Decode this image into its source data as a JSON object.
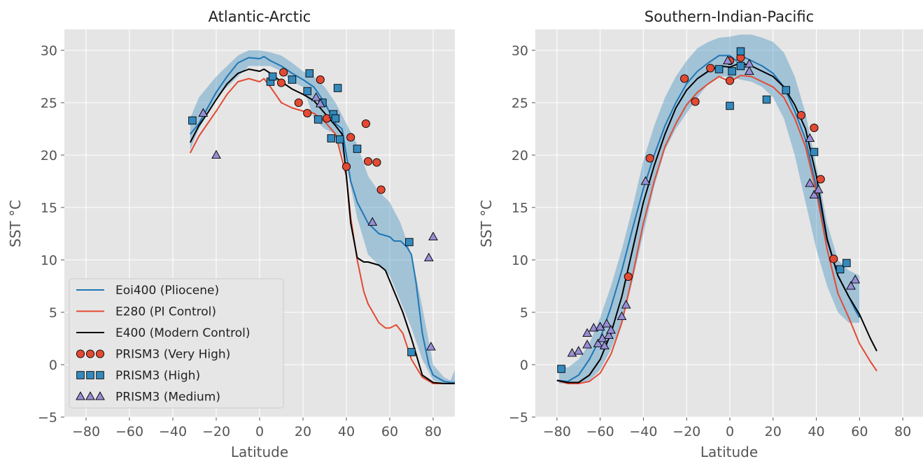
{
  "chart_data": [
    {
      "type": "line",
      "title": "Atlantic-Arctic",
      "xlabel": "Latitude",
      "ylabel": "SST °C",
      "xlim": [
        -90,
        90
      ],
      "ylim": [
        -5,
        32
      ],
      "xticks": [
        "−80",
        "−60",
        "−40",
        "−20",
        "0",
        "20",
        "40",
        "60",
        "80"
      ],
      "yticks": [
        "−5",
        "0",
        "5",
        "10",
        "15",
        "20",
        "25",
        "30"
      ],
      "grid": true,
      "legend": "lower-left",
      "band": {
        "x": [
          -32,
          -28,
          -24,
          -20,
          -15,
          -10,
          -5,
          0,
          5,
          10,
          15,
          20,
          25,
          30,
          35,
          40,
          45,
          50,
          55,
          60,
          65,
          70,
          75,
          80,
          85,
          88,
          90
        ],
        "upper": [
          23.5,
          25.5,
          26.5,
          27.5,
          28.5,
          29.5,
          30.0,
          30.0,
          29.8,
          29.5,
          28.8,
          28.0,
          27.5,
          26.5,
          25.0,
          23.0,
          21.0,
          18.0,
          16.5,
          15.5,
          13.5,
          10.5,
          5.5,
          0.0,
          -1.2,
          -1.5,
          -0.5
        ],
        "lower": [
          20.5,
          22.5,
          24.0,
          25.5,
          26.5,
          27.5,
          28.5,
          28.5,
          28.5,
          28.0,
          27.0,
          26.5,
          23.5,
          22.5,
          22.0,
          19.0,
          14.0,
          10.5,
          9.5,
          8.5,
          6.0,
          3.5,
          0.5,
          -1.5,
          -1.8,
          -1.8,
          -1.8
        ]
      },
      "series": [
        {
          "name": "Eoi400 (Pliocene)",
          "color": "#1f77b4",
          "x": [
            -32,
            -28,
            -24,
            -20,
            -15,
            -10,
            -5,
            0,
            2,
            5,
            10,
            15,
            20,
            25,
            30,
            35,
            38,
            40,
            42,
            45,
            50,
            55,
            60,
            62,
            65,
            68,
            70,
            72,
            75,
            78,
            80,
            85,
            88,
            90
          ],
          "y": [
            22.0,
            23.0,
            24.5,
            26.0,
            27.5,
            28.8,
            29.3,
            29.2,
            29.4,
            29.0,
            28.5,
            27.8,
            27.2,
            26.5,
            25.0,
            23.0,
            22.5,
            20.0,
            17.5,
            15.5,
            13.5,
            12.5,
            12.2,
            11.8,
            11.8,
            11.2,
            10.5,
            8.0,
            3.0,
            0.0,
            -1.0,
            -1.6,
            -1.7,
            -1.7
          ]
        },
        {
          "name": "E280 (PI Control)",
          "color": "#e24a33",
          "x": [
            -32,
            -28,
            -24,
            -20,
            -15,
            -10,
            -5,
            0,
            2,
            5,
            10,
            15,
            20,
            25,
            30,
            35,
            40,
            42,
            45,
            48,
            50,
            55,
            58,
            60,
            63,
            66,
            70,
            75,
            80,
            85,
            90
          ],
          "y": [
            20.2,
            21.8,
            23.0,
            24.2,
            25.8,
            27.0,
            27.3,
            27.0,
            27.3,
            26.5,
            25.0,
            24.5,
            24.2,
            24.0,
            23.2,
            22.0,
            18.0,
            14.0,
            10.0,
            7.0,
            5.8,
            4.0,
            3.5,
            3.5,
            3.8,
            3.0,
            0.5,
            -1.2,
            -1.8,
            -1.8,
            -1.8
          ]
        },
        {
          "name": "E400 (Modern Control)",
          "color": "#000000",
          "x": [
            -32,
            -28,
            -24,
            -20,
            -15,
            -10,
            -5,
            0,
            2,
            5,
            10,
            15,
            20,
            25,
            30,
            35,
            38,
            40,
            42,
            45,
            48,
            50,
            55,
            58,
            60,
            63,
            66,
            70,
            75,
            80,
            85,
            90
          ],
          "y": [
            21.2,
            22.8,
            24.0,
            25.3,
            26.8,
            27.8,
            28.2,
            28.0,
            28.2,
            27.8,
            27.0,
            26.3,
            25.8,
            25.2,
            24.0,
            22.8,
            22.0,
            18.0,
            13.5,
            10.2,
            9.8,
            9.8,
            9.5,
            9.0,
            8.0,
            6.5,
            5.0,
            2.5,
            -1.0,
            -1.7,
            -1.8,
            -1.8
          ]
        }
      ],
      "markers": [
        {
          "name": "PRISM3 (Very High)",
          "shape": "circle",
          "color": "#e24a33",
          "points": [
            [
              11,
              27.9
            ],
            [
              10,
              26.9
            ],
            [
              18,
              25.0
            ],
            [
              22,
              24.0
            ],
            [
              28,
              27.2
            ],
            [
              31,
              23.5
            ],
            [
              40,
              18.9
            ],
            [
              42,
              21.7
            ],
            [
              49,
              23.0
            ],
            [
              50,
              19.4
            ],
            [
              54,
              19.3
            ],
            [
              56,
              16.7
            ]
          ]
        },
        {
          "name": "PRISM3 (High)",
          "shape": "square",
          "color": "#348abd",
          "points": [
            [
              -31,
              23.3
            ],
            [
              5,
              27.0
            ],
            [
              6,
              27.5
            ],
            [
              15,
              27.2
            ],
            [
              22,
              26.1
            ],
            [
              23,
              27.8
            ],
            [
              27,
              23.4
            ],
            [
              29,
              25.0
            ],
            [
              33,
              21.6
            ],
            [
              34,
              23.9
            ],
            [
              35,
              23.5
            ],
            [
              36,
              26.4
            ],
            [
              37,
              21.5
            ],
            [
              45,
              20.6
            ],
            [
              69,
              11.7
            ],
            [
              70,
              1.2
            ]
          ]
        },
        {
          "name": "PRISM3 (Medium)",
          "shape": "triangle",
          "color": "#988ed5",
          "points": [
            [
              -26,
              24.0
            ],
            [
              -20,
              20.0
            ],
            [
              26,
              25.5
            ],
            [
              28,
              24.9
            ],
            [
              52,
              13.6
            ],
            [
              78,
              10.2
            ],
            [
              80,
              12.2
            ],
            [
              79,
              1.7
            ]
          ]
        }
      ]
    },
    {
      "type": "line",
      "title": "Southern-Indian-Pacific",
      "xlabel": "Latitude",
      "ylabel": "SST °C",
      "xlim": [
        -90,
        90
      ],
      "ylim": [
        -5,
        32
      ],
      "xticks": [
        "−80",
        "−60",
        "−40",
        "−20",
        "0",
        "20",
        "40",
        "60",
        "80"
      ],
      "yticks": [
        "−5",
        "0",
        "5",
        "10",
        "15",
        "20",
        "25",
        "30"
      ],
      "grid": true,
      "band": {
        "x": [
          -79,
          -75,
          -70,
          -65,
          -60,
          -55,
          -50,
          -45,
          -40,
          -35,
          -30,
          -25,
          -20,
          -15,
          -10,
          -5,
          0,
          5,
          10,
          15,
          20,
          25,
          30,
          35,
          40,
          45,
          50,
          55,
          60
        ],
        "upper": [
          0.0,
          -0.3,
          0.5,
          2.0,
          4.5,
          7.5,
          11.0,
          15.0,
          19.5,
          22.8,
          25.5,
          27.5,
          29.0,
          30.2,
          30.8,
          31.2,
          31.3,
          31.5,
          31.5,
          31.2,
          30.8,
          29.8,
          27.5,
          24.0,
          19.0,
          13.5,
          10.0,
          9.0,
          8.5
        ],
        "lower": [
          -1.8,
          -1.8,
          -1.8,
          -1.5,
          -0.5,
          1.5,
          4.0,
          8.0,
          12.5,
          17.0,
          20.5,
          22.5,
          24.0,
          25.5,
          26.8,
          27.5,
          27.5,
          27.2,
          27.0,
          26.5,
          25.5,
          23.5,
          20.0,
          15.5,
          11.0,
          7.5,
          5.0,
          4.0,
          4.0
        ]
      },
      "series": [
        {
          "name": "Eoi400 (Pliocene)",
          "color": "#1f77b4",
          "x": [
            -80,
            -75,
            -70,
            -65,
            -60,
            -55,
            -50,
            -45,
            -40,
            -35,
            -30,
            -25,
            -20,
            -15,
            -10,
            -5,
            0,
            3,
            5,
            10,
            15,
            20,
            25,
            30,
            35,
            40,
            45,
            50,
            55,
            58,
            60
          ],
          "y": [
            -1.5,
            -1.6,
            -1.0,
            0.5,
            2.5,
            5.5,
            9.0,
            13.0,
            16.8,
            20.0,
            22.8,
            25.0,
            26.8,
            28.0,
            28.8,
            29.5,
            29.5,
            29.0,
            29.5,
            29.0,
            28.5,
            27.8,
            26.5,
            24.2,
            21.5,
            17.0,
            11.8,
            8.5,
            6.5,
            5.2,
            4.5
          ]
        },
        {
          "name": "E280 (PI Control)",
          "color": "#e24a33",
          "x": [
            -80,
            -75,
            -70,
            -65,
            -60,
            -55,
            -50,
            -45,
            -40,
            -35,
            -30,
            -25,
            -20,
            -15,
            -10,
            -5,
            0,
            5,
            10,
            15,
            20,
            25,
            30,
            35,
            40,
            45,
            50,
            55,
            60,
            65,
            68
          ],
          "y": [
            -1.5,
            -1.8,
            -1.8,
            -1.6,
            -0.8,
            1.0,
            4.0,
            8.5,
            13.5,
            17.5,
            20.8,
            23.0,
            24.8,
            26.0,
            26.8,
            27.5,
            27.0,
            27.6,
            27.5,
            27.0,
            26.5,
            25.5,
            23.5,
            20.8,
            16.5,
            11.0,
            6.8,
            4.5,
            2.0,
            0.3,
            -0.6
          ]
        },
        {
          "name": "E400 (Modern Control)",
          "color": "#000000",
          "x": [
            -80,
            -75,
            -70,
            -65,
            -60,
            -55,
            -50,
            -45,
            -40,
            -35,
            -30,
            -25,
            -20,
            -15,
            -10,
            -5,
            0,
            5,
            10,
            15,
            20,
            25,
            30,
            35,
            40,
            45,
            50,
            55,
            60,
            65,
            68
          ],
          "y": [
            -1.5,
            -1.7,
            -1.7,
            -1.0,
            0.5,
            3.0,
            6.5,
            11.0,
            15.5,
            19.0,
            22.0,
            24.5,
            26.2,
            27.3,
            28.0,
            28.5,
            28.4,
            28.8,
            28.5,
            28.0,
            27.5,
            26.5,
            24.8,
            22.5,
            18.0,
            12.0,
            8.5,
            6.5,
            4.8,
            2.5,
            1.3
          ]
        }
      ],
      "markers": [
        {
          "name": "PRISM3 (Very High)",
          "shape": "circle",
          "color": "#e24a33",
          "points": [
            [
              -47,
              8.4
            ],
            [
              -37,
              19.7
            ],
            [
              -21,
              27.3
            ],
            [
              -16,
              25.1
            ],
            [
              -9,
              28.3
            ],
            [
              0,
              29.0
            ],
            [
              0,
              27.1
            ],
            [
              5,
              29.3
            ],
            [
              33,
              23.8
            ],
            [
              39,
              22.6
            ],
            [
              42,
              17.7
            ],
            [
              48,
              10.1
            ]
          ]
        },
        {
          "name": "PRISM3 (High)",
          "shape": "square",
          "color": "#348abd",
          "points": [
            [
              -78,
              -0.4
            ],
            [
              -5,
              28.2
            ],
            [
              0,
              24.7
            ],
            [
              1,
              28.0
            ],
            [
              5,
              28.5
            ],
            [
              5,
              29.9
            ],
            [
              17,
              25.3
            ],
            [
              26,
              26.2
            ],
            [
              39,
              20.3
            ],
            [
              51,
              9.1
            ],
            [
              54,
              9.7
            ]
          ]
        },
        {
          "name": "PRISM3 (Medium)",
          "shape": "triangle",
          "color": "#988ed5",
          "points": [
            [
              -73,
              1.1
            ],
            [
              -70,
              1.3
            ],
            [
              -66,
              1.9
            ],
            [
              -66,
              3.0
            ],
            [
              -63,
              3.5
            ],
            [
              -61,
              2.0
            ],
            [
              -60,
              3.6
            ],
            [
              -59,
              2.5
            ],
            [
              -58,
              1.8
            ],
            [
              -57,
              3.9
            ],
            [
              -56,
              2.8
            ],
            [
              -55,
              3.3
            ],
            [
              -50,
              4.6
            ],
            [
              -48,
              5.7
            ],
            [
              -39,
              17.5
            ],
            [
              -1,
              29.0
            ],
            [
              9,
              28.0
            ],
            [
              9,
              28.7
            ],
            [
              37,
              21.6
            ],
            [
              37,
              17.3
            ],
            [
              39,
              16.2
            ],
            [
              41,
              16.7
            ],
            [
              56,
              7.5
            ],
            [
              58,
              8.1
            ]
          ]
        }
      ]
    }
  ]
}
